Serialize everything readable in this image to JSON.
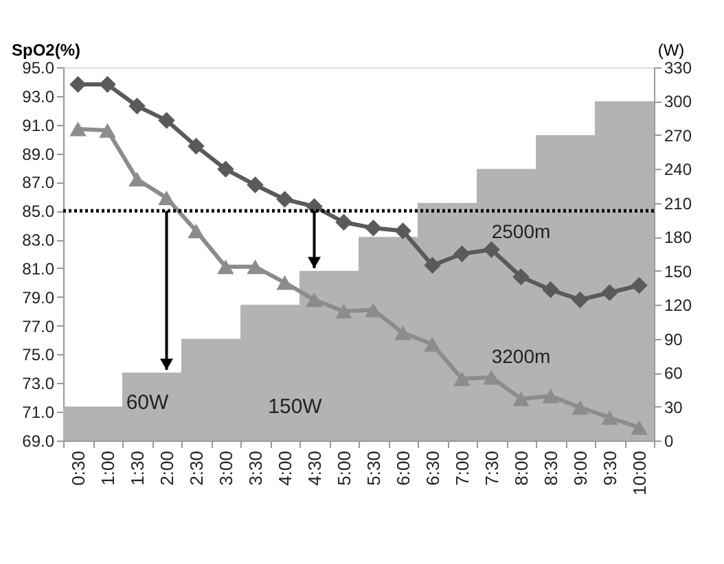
{
  "chart_data": {
    "type": "bar",
    "categories": [
      "0:30",
      "1:00",
      "1:30",
      "2:00",
      "2:30",
      "3:00",
      "3:30",
      "4:00",
      "4:30",
      "5:00",
      "5:30",
      "6:00",
      "6:30",
      "7:00",
      "7:30",
      "8:00",
      "8:30",
      "9:00",
      "9:30",
      "10:00"
    ],
    "ylabel": "SpO2(%)",
    "y2label": "(W)",
    "series": [
      {
        "axis": "y2",
        "color": "#b3b3b3",
        "values": [
          30,
          30,
          60,
          60,
          90,
          90,
          120,
          120,
          150,
          150,
          180,
          180,
          210,
          210,
          240,
          240,
          270,
          270,
          300,
          300
        ]
      },
      {
        "type": "line",
        "name": "2500m",
        "color": "#5a5a5a",
        "marker": "diamond",
        "values": [
          93.8,
          93.8,
          92.3,
          91.3,
          89.5,
          87.9,
          86.8,
          85.8,
          85.3,
          84.2,
          83.8,
          83.6,
          81.2,
          82.0,
          82.3,
          80.4,
          79.5,
          78.8,
          79.3,
          79.8
        ]
      },
      {
        "type": "line",
        "name": "3200m",
        "color": "#8c8c8c",
        "marker": "triangle",
        "values": [
          90.7,
          90.6,
          87.2,
          85.9,
          83.6,
          81.1,
          81.1,
          80.0,
          78.8,
          78.0,
          78.1,
          76.5,
          75.7,
          73.3,
          73.4,
          71.9,
          72.1,
          71.3,
          70.6,
          69.9
        ]
      }
    ],
    "ylim": [
      69,
      95
    ],
    "yticks": [
      {
        "value": 69,
        "label": "69.0"
      },
      {
        "value": 71,
        "label": "71.0"
      },
      {
        "value": 73,
        "label": "73.0"
      },
      {
        "value": 75,
        "label": "75.0"
      },
      {
        "value": 77,
        "label": "77.0"
      },
      {
        "value": 79,
        "label": "79.0"
      },
      {
        "value": 81,
        "label": "81.0"
      },
      {
        "value": 83,
        "label": "83.0"
      },
      {
        "value": 85,
        "label": "85.0"
      },
      {
        "value": 87,
        "label": "87.0"
      },
      {
        "value": 89,
        "label": "89.0"
      },
      {
        "value": 91,
        "label": "91.0"
      },
      {
        "value": 93,
        "label": "93.0"
      },
      {
        "value": 95,
        "label": "95.0"
      }
    ],
    "y2lim": [
      0,
      330
    ],
    "y2ticks": [
      0,
      30,
      60,
      90,
      120,
      150,
      180,
      210,
      240,
      270,
      300,
      330
    ],
    "ref_lines": [
      {
        "axis": "y",
        "value": 85,
        "line_style": "dotted",
        "color": "#000000"
      }
    ],
    "annotations": [
      "60W",
      "150W"
    ],
    "grid": false,
    "legend": false
  }
}
